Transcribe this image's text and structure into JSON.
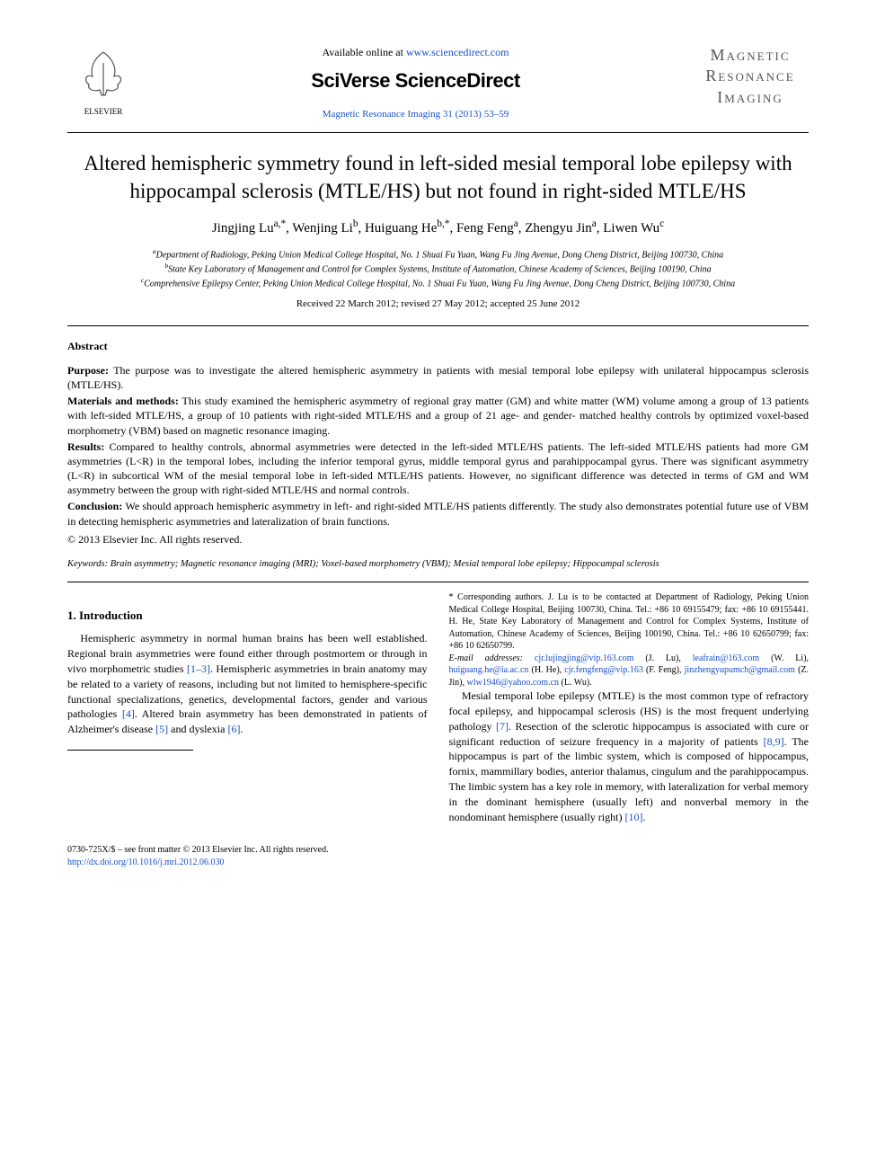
{
  "header": {
    "available_prefix": "Available online at ",
    "available_url": "www.sciencedirect.com",
    "branding": "SciVerse ScienceDirect",
    "journal_ref": "Magnetic Resonance Imaging 31 (2013) 53–59",
    "elsevier_label": "ELSEVIER",
    "journal_logo_l1": "Magnetic",
    "journal_logo_l2": "Resonance",
    "journal_logo_l3": "Imaging"
  },
  "title": "Altered hemispheric symmetry found in left-sided mesial temporal lobe epilepsy with hippocampal sclerosis (MTLE/HS) but not found in right-sided MTLE/HS",
  "authors_html": "Jingjing Lu<sup>a,*</sup>, Wenjing Li<sup>b</sup>, Huiguang He<sup>b,*</sup>, Feng Feng<sup>a</sup>, Zhengyu Jin<sup>a</sup>, Liwen Wu<sup>c</sup>",
  "affiliations": {
    "a": "Department of Radiology, Peking Union Medical College Hospital, No. 1 Shuai Fu Yuan, Wang Fu Jing Avenue, Dong Cheng District, Beijing 100730, China",
    "b": "State Key Laboratory of Management and Control for Complex Systems, Institute of Automation, Chinese Academy of Sciences, Beijing 100190, China",
    "c": "Comprehensive Epilepsy Center, Peking Union Medical College Hospital, No. 1 Shuai Fu Yuan, Wang Fu Jing Avenue, Dong Cheng District, Beijing 100730, China"
  },
  "dates": "Received 22 March 2012; revised 27 May 2012; accepted 25 June 2012",
  "abstract": {
    "heading": "Abstract",
    "purpose_label": "Purpose:",
    "purpose": " The purpose was to investigate the altered hemispheric asymmetry in patients with mesial temporal lobe epilepsy with unilateral hippocampus sclerosis (MTLE/HS).",
    "methods_label": "Materials and methods:",
    "methods": " This study examined the hemispheric asymmetry of regional gray matter (GM) and white matter (WM) volume among a group of 13 patients with left-sided MTLE/HS, a group of 10 patients with right-sided MTLE/HS and a group of 21 age- and gender- matched healthy controls by optimized voxel-based morphometry (VBM) based on magnetic resonance imaging.",
    "results_label": "Results:",
    "results": " Compared to healthy controls, abnormal asymmetries were detected in the left-sided MTLE/HS patients. The left-sided MTLE/HS patients had more GM asymmetries (L<R) in the temporal lobes, including the inferior temporal gyrus, middle temporal gyrus and parahippocampal gyrus. There was significant asymmetry (L<R) in subcortical WM of the mesial temporal lobe in left-sided MTLE/HS patients. However, no significant difference was detected in terms of GM and WM asymmetry between the group with right-sided MTLE/HS and normal controls.",
    "conclusion_label": "Conclusion:",
    "conclusion": " We should approach hemispheric asymmetry in left- and right-sided MTLE/HS patients differently. The study also demonstrates potential future use of VBM in detecting hemispheric asymmetries and lateralization of brain functions.",
    "copyright": "© 2013 Elsevier Inc. All rights reserved."
  },
  "keywords": {
    "label": "Keywords:",
    "text": " Brain asymmetry; Magnetic resonance imaging (MRI); Voxel-based morphometry (VBM); Mesial temporal lobe epilepsy; Hippocampal sclerosis"
  },
  "intro": {
    "heading": "1. Introduction",
    "p1_pre": "Hemispheric asymmetry in normal human brains has been well established. Regional brain asymmetries were found either through postmortem or through in vivo morphometric studies ",
    "p1_ref1": "[1–3]",
    "p1_mid": ". Hemispheric asymmetries in brain anatomy may be related to a variety of reasons, including but not limited to hemisphere-specific functional specializations, genetics, developmental factors, gender and various pathologies ",
    "p1_ref2": "[4]",
    "p1_post": ". Altered brain asymmetry has been demonstrated in patients of Alzheimer's disease ",
    "p1_ref3": "[5]",
    "p1_and": " and dyslexia ",
    "p1_ref4": "[6]",
    "p1_end": ".",
    "p2_pre": "Mesial temporal lobe epilepsy (MTLE) is the most common type of refractory focal epilepsy, and hippocampal sclerosis (HS) is the most frequent underlying pathology ",
    "p2_ref1": "[7]",
    "p2_mid1": ". Resection of the sclerotic hippocampus is associated with cure or significant reduction of seizure frequency in a majority of patients ",
    "p2_ref2": "[8,9]",
    "p2_mid2": ". The hippocampus is part of the limbic system, which is composed of hippocampus, fornix, mammillary bodies, anterior thalamus, cingulum and the parahippocampus. The limbic system has a key role in memory, with lateralization for verbal memory in the dominant hemisphere (usually left) and nonverbal memory in the nondominant hemisphere (usually right) ",
    "p2_ref3": "[10]",
    "p2_end": "."
  },
  "footnotes": {
    "corr": "* Corresponding authors. J. Lu is to be contacted at Department of Radiology, Peking Union Medical College Hospital, Beijing 100730, China. Tel.: +86 10 69155479; fax: +86 10 69155441. H. He, State Key Laboratory of Management and Control for Complex Systems, Institute of Automation, Chinese Academy of Sciences, Beijing 100190, China. Tel.: +86 10 62650799; fax: +86 10 62650799.",
    "emails_label": "E-mail addresses:",
    "emails": [
      {
        "addr": "cjr.lujingjing@vip.163.com",
        "who": "(J. Lu)"
      },
      {
        "addr": "leafrain@163.com",
        "who": "(W. Li)"
      },
      {
        "addr": "huiguang.he@ia.ac.cn",
        "who": "(H. He)"
      },
      {
        "addr": "cjr.fengfeng@vip.163",
        "who": "(F. Feng)"
      },
      {
        "addr": "jinzhengyupumch@gmail.com",
        "who": "(Z. Jin)"
      },
      {
        "addr": "wlw1946@yahoo.com.cn",
        "who": "(L. Wu)"
      }
    ]
  },
  "footer": {
    "left": "0730-725X/$ – see front matter © 2013 Elsevier Inc. All rights reserved.",
    "doi": "http://dx.doi.org/10.1016/j.mri.2012.06.030"
  },
  "colors": {
    "link": "#1a4fc8",
    "text": "#000000",
    "bg": "#ffffff"
  }
}
